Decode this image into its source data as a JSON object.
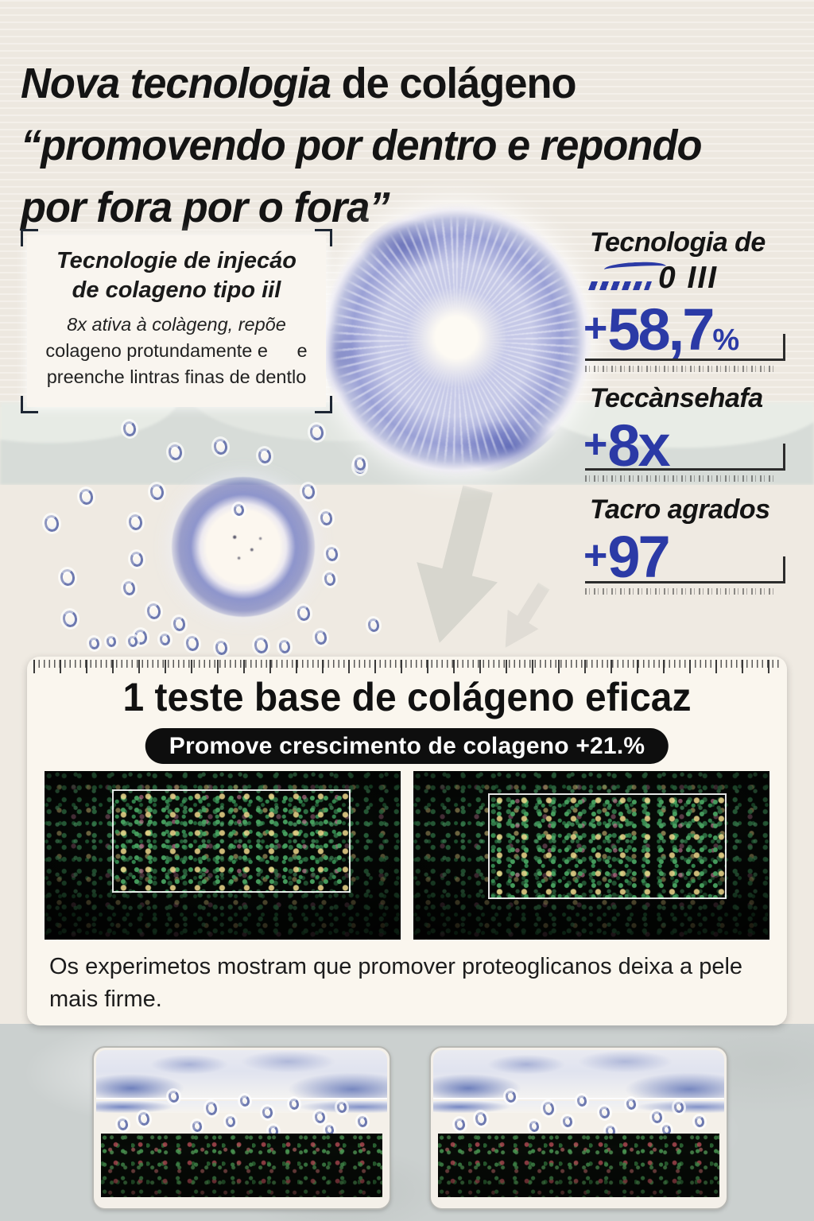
{
  "headline": {
    "part_italic": "Nova tecnologia",
    "part_regular": " de colágeno",
    "line2": "“promovendo por dentro e repondo",
    "line3": "por fora por o fora”"
  },
  "info_box": {
    "title_line1": "Tecnologie de injecáo",
    "title_line2": "de colageno tipo iil",
    "body_line1": "8x ativa à colàgeng, repõe",
    "body_line2": "colageno protundamente e   e",
    "body_line3": "preenche lintras finas de dentlo"
  },
  "stats": {
    "s1": {
      "label": "Tecnologia de",
      "logo_text": "0 III",
      "plus": "+",
      "num": "58,7",
      "unit": "%"
    },
    "s2": {
      "label": "Teccànsehafa",
      "plus": "+",
      "num": "8x",
      "unit": ""
    },
    "s3": {
      "label": "Tacro agrados",
      "plus": "+",
      "num": "97",
      "unit": ""
    }
  },
  "test_panel": {
    "title": "1 teste base de colágeno eficaz",
    "badge": "Promove crescimento de colageno +21.%",
    "caption": "Os experimetos mostram que promover proteoglicanos deixa a pele mais firme."
  },
  "colors": {
    "accent_blue": "#2b3aa6",
    "ink": "#141414",
    "panel_bg": "#faf6ee",
    "pill_bg": "#0e0e0e",
    "page_cream": "#f0ebe3",
    "band_gray": "#d7dcd8",
    "bottom_gray": "#cbd0cf"
  }
}
